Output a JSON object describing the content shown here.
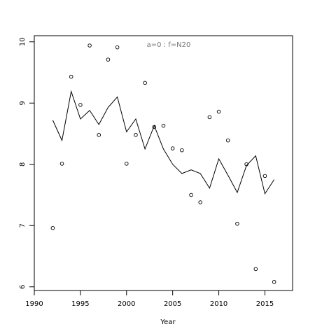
{
  "chart_data": {
    "type": "scatter",
    "x_label": "Year",
    "annotation": "a=0  :  f=N20",
    "x": [
      1992,
      1993,
      1994,
      1995,
      1996,
      1997,
      1998,
      1999,
      2000,
      2001,
      2002,
      2003,
      2004,
      2005,
      2006,
      2007,
      2008,
      2009,
      2010,
      2011,
      2012,
      2013,
      2014,
      2015,
      2016
    ],
    "series": [
      {
        "style": "points",
        "color": "#000000",
        "values": [
          6.96,
          8.01,
          9.43,
          8.97,
          9.94,
          8.48,
          9.71,
          9.91,
          8.01,
          8.48,
          9.33,
          8.61,
          8.63,
          8.26,
          8.23,
          7.5,
          7.38,
          8.77,
          8.86,
          8.39,
          7.03,
          8.0,
          6.29,
          7.81,
          6.08
        ]
      },
      {
        "style": "line",
        "color": "#000000",
        "values": [
          8.72,
          8.39,
          9.19,
          8.74,
          8.88,
          8.65,
          8.93,
          9.1,
          8.53,
          8.74,
          8.25,
          8.63,
          8.25,
          8.0,
          7.85,
          7.91,
          7.85,
          7.61,
          8.09,
          7.82,
          7.54,
          7.98,
          8.14,
          7.52,
          7.75
        ]
      }
    ],
    "xlim": [
      1990,
      2018
    ],
    "xticks": [
      1990,
      1995,
      2000,
      2005,
      2010,
      2015
    ],
    "ylim": [
      5.94,
      10.1
    ],
    "yticks": [
      6,
      7,
      8,
      9,
      10
    ]
  }
}
